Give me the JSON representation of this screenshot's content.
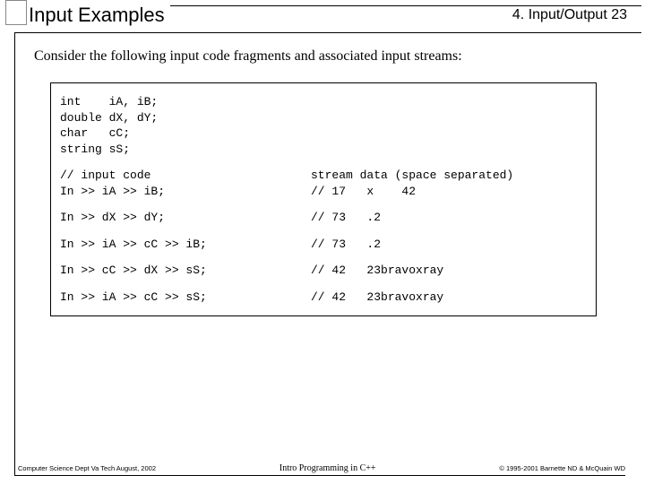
{
  "header": {
    "title_left": "Input Examples",
    "title_right": "4. Input/Output  23"
  },
  "intro": "Consider the following input code fragments and associated input streams:",
  "code": {
    "decls": [
      "int    iA, iB;",
      "double dX, dY;",
      "char   cC;",
      "string sS;"
    ],
    "header_row": {
      "left": "// input code",
      "right": "stream data (space separated)"
    },
    "first_row": {
      "left": "In >> iA >> iB;",
      "right": "// 17   x    42"
    },
    "rows": [
      {
        "left": "In >> dX >> dY;",
        "right": "// 73   .2"
      },
      {
        "left": "In >> iA >> cC >> iB;",
        "right": "// 73   .2"
      },
      {
        "left": "In >> cC >> dX >> sS;",
        "right": "// 42   23bravoxray"
      },
      {
        "left": "In >> iA >> cC >> sS;",
        "right": "// 42   23bravoxray"
      }
    ]
  },
  "footer": {
    "left": "Computer Science Dept Va Tech  August, 2002",
    "center": "Intro Programming in C++",
    "right": "© 1995-2001  Barnette ND & McQuain WD"
  }
}
